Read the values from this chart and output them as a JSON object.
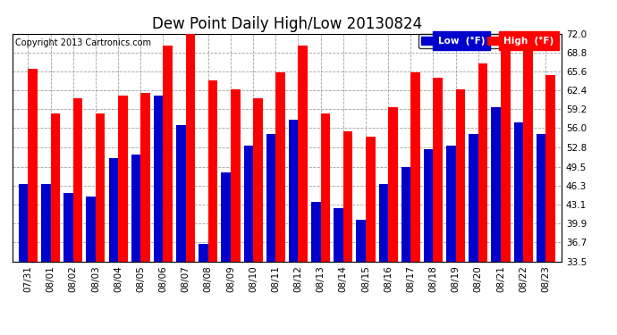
{
  "title": "Dew Point Daily High/Low 20130824",
  "copyright": "Copyright 2013 Cartronics.com",
  "legend_low": "Low  (°F)",
  "legend_high": "High  (°F)",
  "dates": [
    "07/31",
    "08/01",
    "08/02",
    "08/03",
    "08/04",
    "08/05",
    "08/06",
    "08/07",
    "08/08",
    "08/09",
    "08/10",
    "08/11",
    "08/12",
    "08/13",
    "08/14",
    "08/15",
    "08/16",
    "08/17",
    "08/18",
    "08/19",
    "08/20",
    "08/21",
    "08/22",
    "08/23"
  ],
  "low": [
    46.5,
    46.5,
    45.0,
    44.5,
    51.0,
    51.5,
    61.5,
    56.5,
    36.5,
    48.5,
    53.0,
    55.0,
    57.5,
    43.5,
    42.5,
    40.5,
    46.5,
    49.5,
    52.5,
    53.0,
    55.0,
    59.5,
    57.0,
    55.0
  ],
  "high": [
    66.0,
    58.5,
    61.0,
    58.5,
    61.5,
    62.0,
    70.0,
    73.0,
    64.0,
    62.5,
    61.0,
    65.5,
    70.0,
    58.5,
    55.5,
    54.5,
    59.5,
    65.5,
    64.5,
    62.5,
    67.0,
    69.5,
    71.5,
    65.0
  ],
  "ylim": [
    33.5,
    72.0
  ],
  "yticks": [
    33.5,
    36.7,
    39.9,
    43.1,
    46.3,
    49.5,
    52.8,
    56.0,
    59.2,
    62.4,
    65.6,
    68.8,
    72.0
  ],
  "bar_width": 0.42,
  "low_color": "#0000cc",
  "high_color": "#ff0000",
  "bg_color": "#ffffff",
  "grid_color": "#888888",
  "title_fontsize": 12,
  "tick_fontsize": 7.5,
  "legend_fontsize": 7.5,
  "copyright_fontsize": 7
}
